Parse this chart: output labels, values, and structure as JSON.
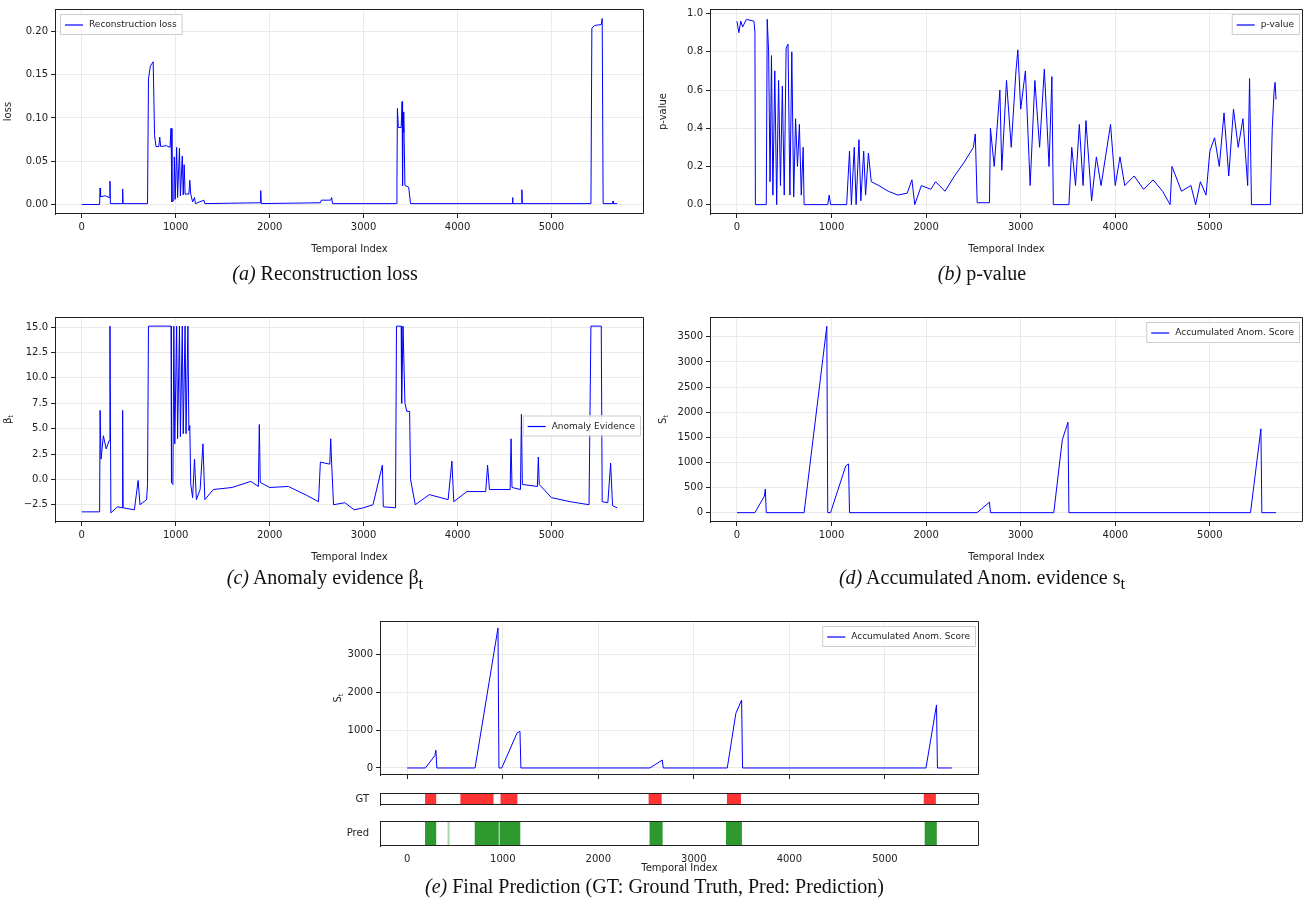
{
  "chart_data": [
    {
      "type": "line",
      "title": "(a) Reconstruction loss",
      "xlabel": "Temporal Index",
      "ylabel": "loss",
      "xlim": [
        -285,
        5985
      ],
      "xticks": [
        0,
        1000,
        2000,
        3000,
        4000,
        5000
      ],
      "ylim": [
        -0.011,
        0.226
      ],
      "yticks": [
        {
          "value": 0,
          "label": "0.00"
        },
        {
          "value": 0.05,
          "label": "0.05"
        },
        {
          "value": 0.1,
          "label": "0.10"
        },
        {
          "value": 0.15,
          "label": "0.15"
        },
        {
          "value": 0.2,
          "label": "0.20"
        }
      ],
      "grid": true,
      "legend": "top left",
      "series": [
        {
          "name": "Reconstruction loss",
          "color": "#0000ff",
          "x": [
            0,
            190,
            195,
            200,
            250,
            295,
            300,
            305,
            430,
            435,
            440,
            700,
            710,
            730,
            760,
            775,
            790,
            820,
            830,
            840,
            900,
            940,
            950,
            960,
            980,
            985,
            995,
            1010,
            1020,
            1040,
            1050,
            1070,
            1080,
            1090,
            1100,
            1140,
            1150,
            1160,
            1180,
            1200,
            1210,
            1300,
            1310,
            1900,
            1905,
            1910,
            2540,
            2550,
            2650,
            2660,
            2670,
            3350,
            3355,
            3360,
            3370,
            3400,
            3410,
            3415,
            3420,
            3425,
            3430,
            3440,
            3480,
            3500,
            4580,
            4585,
            4590,
            4680,
            4685,
            4690,
            5420,
            5430,
            5460,
            5530,
            5540,
            5550,
            5650,
            5655,
            5660,
            5700
          ],
          "values": [
            0,
            0,
            0.019,
            0.009,
            0.01,
            0.008,
            0.027,
            0.001,
            0.001,
            0.018,
            0.001,
            0.001,
            0.145,
            0.16,
            0.165,
            0.08,
            0.067,
            0.067,
            0.078,
            0.067,
            0.068,
            0.066,
            0.088,
            0.003,
            0.005,
            0.055,
            0.006,
            0.066,
            0.008,
            0.065,
            0.01,
            0.056,
            0.011,
            0.046,
            0.012,
            0.012,
            0.028,
            0.012,
            0.003,
            0.008,
            0.001,
            0.005,
            0.001,
            0.002,
            0.016,
            0.001,
            0.002,
            0.005,
            0.005,
            0.008,
            0.001,
            0.001,
            0.025,
            0.111,
            0.089,
            0.089,
            0.119,
            0.022,
            0.107,
            0.083,
            0.103,
            0.022,
            0.02,
            0.001,
            0.001,
            0.008,
            0.001,
            0.001,
            0.017,
            0.001,
            0.001,
            0.204,
            0.207,
            0.208,
            0.215,
            0.001,
            0.001,
            0.004,
            0.001,
            0.001
          ]
        }
      ]
    },
    {
      "type": "line",
      "title": "(b) p-value",
      "xlabel": "Temporal Index",
      "ylabel": "p-value",
      "xlim": [
        -285,
        5985
      ],
      "xticks": [
        0,
        1000,
        2000,
        3000,
        4000,
        5000
      ],
      "ylim": [
        -0.049,
        1.024
      ],
      "yticks": [
        {
          "value": 0,
          "label": "0.0"
        },
        {
          "value": 0.2,
          "label": "0.2"
        },
        {
          "value": 0.4,
          "label": "0.4"
        },
        {
          "value": 0.6,
          "label": "0.6"
        },
        {
          "value": 0.8,
          "label": "0.8"
        },
        {
          "value": 1,
          "label": "1.0"
        }
      ],
      "grid": true,
      "legend": "top right",
      "series": [
        {
          "name": "p-value",
          "color": "#0000ff",
          "x": [
            0,
            20,
            40,
            60,
            100,
            180,
            190,
            195,
            310,
            320,
            335,
            350,
            365,
            380,
            400,
            420,
            440,
            460,
            480,
            500,
            520,
            540,
            560,
            580,
            600,
            620,
            640,
            660,
            680,
            700,
            710,
            960,
            975,
            990,
            1160,
            1190,
            1210,
            1240,
            1260,
            1290,
            1310,
            1340,
            1360,
            1390,
            1420,
            1500,
            1600,
            1700,
            1800,
            1850,
            1880,
            1950,
            2050,
            2100,
            2200,
            2300,
            2400,
            2500,
            2520,
            2540,
            2670,
            2680,
            2720,
            2780,
            2800,
            2850,
            2900,
            2950,
            2970,
            3000,
            3050,
            3100,
            3150,
            3200,
            3250,
            3300,
            3330,
            3345,
            3510,
            3540,
            3580,
            3620,
            3660,
            3690,
            3750,
            3800,
            3850,
            3950,
            4000,
            4050,
            4100,
            4200,
            4300,
            4400,
            4500,
            4580,
            4600,
            4700,
            4800,
            4850,
            4900,
            4960,
            5000,
            5050,
            5100,
            5150,
            5200,
            5250,
            5300,
            5350,
            5400,
            5420,
            5440,
            5640,
            5660,
            5680,
            5690,
            5700
          ],
          "values": [
            0.96,
            0.9,
            0.96,
            0.93,
            0.97,
            0.96,
            0.9,
            0,
            0,
            0.97,
            0.8,
            0.12,
            0.78,
            0.05,
            0.7,
            0,
            0.65,
            0.1,
            0.62,
            0.05,
            0.82,
            0.84,
            0.05,
            0.8,
            0.04,
            0.45,
            0.2,
            0.42,
            0.05,
            0.3,
            0,
            0,
            0.05,
            0,
            0,
            0.28,
            0,
            0.3,
            0,
            0.34,
            0.02,
            0.28,
            0.05,
            0.27,
            0.12,
            0.1,
            0.07,
            0.05,
            0.06,
            0.13,
            0,
            0.1,
            0.08,
            0.12,
            0.07,
            0.15,
            0.22,
            0.3,
            0.37,
            0.01,
            0.01,
            0.4,
            0.2,
            0.6,
            0.18,
            0.65,
            0.3,
            0.7,
            0.81,
            0.5,
            0.7,
            0.1,
            0.65,
            0.3,
            0.71,
            0.2,
            0.67,
            0,
            0,
            0.3,
            0.1,
            0.42,
            0.1,
            0.44,
            0.02,
            0.25,
            0.1,
            0.42,
            0.1,
            0.25,
            0.1,
            0.15,
            0.08,
            0.13,
            0.07,
            0,
            0.2,
            0.07,
            0.1,
            0,
            0.12,
            0.05,
            0.28,
            0.35,
            0.2,
            0.48,
            0.15,
            0.5,
            0.3,
            0.45,
            0.1,
            0.66,
            0,
            0,
            0.4,
            0.6,
            0.64,
            0.55
          ]
        }
      ]
    },
    {
      "type": "line",
      "title": "(c) Anomaly evidence β$_{t}$",
      "xlabel": "Temporal Index",
      "ylabel": "β$_{t}$",
      "xlim": [
        -285,
        5985
      ],
      "xticks": [
        0,
        1000,
        2000,
        3000,
        4000,
        5000
      ],
      "ylim": [
        -4.2,
        16
      ],
      "yticks": [
        {
          "value": -2.5,
          "label": "−2.5"
        },
        {
          "value": 0,
          "label": "0.0"
        },
        {
          "value": 2.5,
          "label": "2.5"
        },
        {
          "value": 5,
          "label": "5.0"
        },
        {
          "value": 7.5,
          "label": "7.5"
        },
        {
          "value": 10,
          "label": "10.0"
        },
        {
          "value": 12.5,
          "label": "12.5"
        },
        {
          "value": 15,
          "label": "15.0"
        }
      ],
      "grid": true,
      "legend": "center right",
      "series": [
        {
          "name": "Anomaly Evidence",
          "color": "#0000ff",
          "x": [
            0,
            190,
            195,
            205,
            230,
            260,
            290,
            300,
            310,
            380,
            430,
            435,
            440,
            560,
            600,
            620,
            690,
            700,
            710,
            950,
            955,
            970,
            980,
            990,
            1010,
            1020,
            1040,
            1050,
            1070,
            1080,
            1100,
            1110,
            1130,
            1140,
            1150,
            1160,
            1180,
            1200,
            1220,
            1260,
            1290,
            1310,
            1400,
            1600,
            1800,
            1880,
            1890,
            1900,
            2000,
            2200,
            2400,
            2520,
            2540,
            2640,
            2650,
            2660,
            2680,
            2800,
            2900,
            3000,
            3100,
            3200,
            3210,
            3340,
            3350,
            3400,
            3405,
            3420,
            3440,
            3460,
            3490,
            3500,
            3550,
            3700,
            3900,
            3940,
            3960,
            4100,
            4300,
            4320,
            4340,
            4560,
            4570,
            4580,
            4670,
            4680,
            4690,
            4850,
            4860,
            4870,
            5000,
            5200,
            5400,
            5420,
            5530,
            5540,
            5600,
            5630,
            5650,
            5700
          ],
          "values": [
            -3.2,
            -3.2,
            6.8,
            2,
            4.3,
            3,
            3.8,
            15.1,
            -3.3,
            -2.7,
            -2.8,
            6.8,
            -2.8,
            -3,
            -0.1,
            -2.5,
            -2,
            -0.5,
            15.1,
            15.1,
            -0.3,
            -0.5,
            15.1,
            3.5,
            15.1,
            4,
            15.1,
            4.2,
            15.1,
            4.5,
            15.1,
            4.5,
            15.1,
            4.8,
            5.3,
            -0.5,
            -1.8,
            2,
            -2,
            -1,
            3.5,
            -2,
            -1,
            -0.8,
            -0.2,
            -0.7,
            5.4,
            -0.3,
            -0.8,
            -0.7,
            -1.6,
            -2.2,
            1.7,
            1.5,
            4,
            1.6,
            -2.5,
            -2.3,
            -3,
            -2.8,
            -2.5,
            1.4,
            -2.7,
            -2.8,
            15.1,
            15.1,
            7.5,
            15.1,
            7.5,
            6.7,
            6.7,
            0,
            -2.5,
            -1.5,
            -2,
            1.8,
            -2.2,
            -1.2,
            -1.2,
            1.4,
            -1,
            -1,
            4,
            -0.8,
            -1,
            6.4,
            -0.5,
            -0.7,
            2.2,
            -0.5,
            -1.8,
            -2.2,
            -2.5,
            15.1,
            15.1,
            -2.2,
            -2.3,
            1.6,
            -2.6,
            -2.8
          ]
        }
      ]
    },
    {
      "type": "line",
      "title": "(d) Accumulated Anom. evidence s$_{t}$",
      "xlabel": "Temporal Index",
      "ylabel": "S$_{t}$",
      "xlim": [
        -285,
        5985
      ],
      "xticks": [
        0,
        1000,
        2000,
        3000,
        4000,
        5000
      ],
      "ylim": [
        -186,
        3896
      ],
      "yticks": [
        0,
        500,
        1000,
        1500,
        2000,
        2500,
        3000,
        3500
      ],
      "grid": true,
      "legend": "top right",
      "series": [
        {
          "name": "Accumulated Anom. Score",
          "color": "#0000ff",
          "x": [
            0,
            190,
            290,
            300,
            310,
            710,
            950,
            960,
            990,
            1000,
            1150,
            1180,
            1190,
            2540,
            2670,
            2680,
            3350,
            3440,
            3500,
            3510,
            5430,
            5540,
            5550,
            5700
          ],
          "values": [
            0,
            0,
            330,
            470,
            0,
            0,
            3710,
            0,
            0,
            60,
            930,
            970,
            0,
            0,
            210,
            0,
            0,
            1450,
            1800,
            0,
            0,
            1670,
            0,
            0
          ]
        }
      ]
    },
    {
      "type": "line",
      "title": "(e) Final Prediction (GT: Ground Truth, Pred: Prediction)",
      "ylabel": "S$_{t}$",
      "xlim": [
        -285,
        5985
      ],
      "xticks": [
        0,
        1000,
        2000,
        3000,
        4000,
        5000
      ],
      "ylim": [
        -186,
        3896
      ],
      "yticks": [
        0,
        1000,
        2000,
        3000
      ],
      "grid": true,
      "legend": "top right",
      "tick_labels": "y",
      "series": [
        {
          "name": "Accumulated Anom. Score",
          "color": "#0000ff",
          "x": [
            0,
            190,
            290,
            300,
            310,
            710,
            950,
            960,
            990,
            1000,
            1150,
            1180,
            1190,
            2540,
            2670,
            2680,
            3350,
            3440,
            3500,
            3510,
            5430,
            5540,
            5550,
            5700
          ],
          "values": [
            0,
            0,
            330,
            470,
            0,
            0,
            3710,
            0,
            0,
            60,
            930,
            970,
            0,
            0,
            210,
            0,
            0,
            1450,
            1800,
            0,
            0,
            1670,
            0,
            0
          ]
        }
      ]
    },
    {
      "type": "bar",
      "orientation": "horizontal",
      "categories": [
        "GT"
      ],
      "xlim": [
        -285,
        5985
      ],
      "xticks": [
        0,
        1000,
        2000,
        3000,
        4000,
        5000
      ],
      "tick_labels": "y",
      "series": [
        {
          "color": "#ff3333",
          "values": [
            110
          ],
          "base": [
            190
          ]
        },
        {
          "color": "#ff3333",
          "values": [
            340
          ],
          "base": [
            560
          ]
        },
        {
          "color": "#ff3333",
          "values": [
            170
          ],
          "base": [
            980
          ]
        },
        {
          "color": "#ff3333",
          "values": [
            130
          ],
          "base": [
            2530
          ]
        },
        {
          "color": "#ff3333",
          "values": [
            140
          ],
          "base": [
            3350
          ]
        },
        {
          "color": "#ff3333",
          "values": [
            120
          ],
          "base": [
            5410
          ]
        }
      ]
    },
    {
      "type": "bar",
      "orientation": "horizontal",
      "categories": [
        "Pred"
      ],
      "xlabel": "Temporal Index",
      "xlim": [
        -285,
        5985
      ],
      "xticks": [
        0,
        1000,
        2000,
        3000,
        4000,
        5000
      ],
      "series": [
        {
          "color": "#2e992e",
          "values": [
            110
          ],
          "base": [
            190
          ]
        },
        {
          "color": "#a8d8a8",
          "values": [
            15
          ],
          "base": [
            425
          ]
        },
        {
          "color": "#2e992e",
          "values": [
            245
          ],
          "base": [
            710
          ]
        },
        {
          "color": "#2e992e",
          "values": [
            210
          ],
          "base": [
            970
          ]
        },
        {
          "color": "#2e992e",
          "values": [
            130
          ],
          "base": [
            2540
          ]
        },
        {
          "color": "#2e992e",
          "values": [
            160
          ],
          "base": [
            3340
          ]
        },
        {
          "color": "#2e992e",
          "values": [
            120
          ],
          "base": [
            5420
          ]
        }
      ]
    }
  ]
}
